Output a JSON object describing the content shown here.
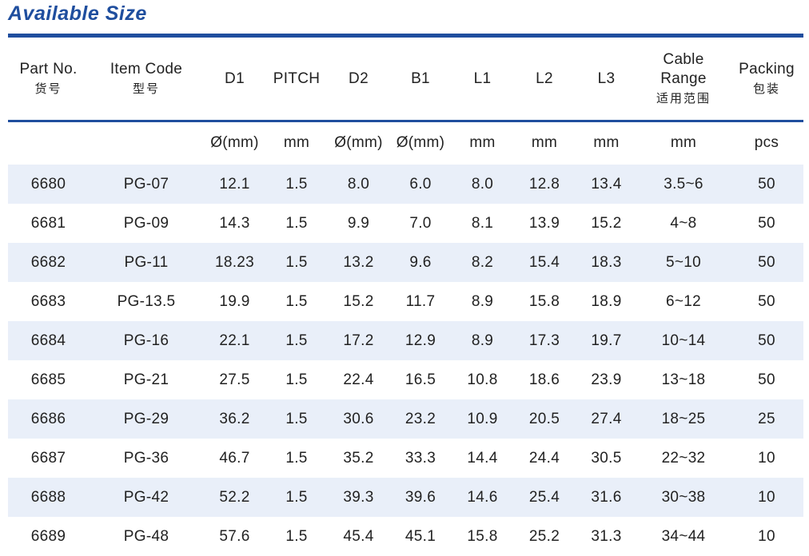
{
  "title": "Available Size",
  "headers": [
    {
      "en": "Part No.",
      "zh": "货号"
    },
    {
      "en": "Item Code",
      "zh": "型号"
    },
    {
      "en": "D1",
      "zh": ""
    },
    {
      "en": "PITCH",
      "zh": ""
    },
    {
      "en": "D2",
      "zh": ""
    },
    {
      "en": "B1",
      "zh": ""
    },
    {
      "en": "L1",
      "zh": ""
    },
    {
      "en": "L2",
      "zh": ""
    },
    {
      "en": "L3",
      "zh": ""
    },
    {
      "en": "Cable Range",
      "zh": "适用范围"
    },
    {
      "en": "Packing",
      "zh": "包装"
    }
  ],
  "units": [
    "",
    "",
    "Ø(mm)",
    "mm",
    "Ø(mm)",
    "Ø(mm)",
    "mm",
    "mm",
    "mm",
    "mm",
    "pcs"
  ],
  "rows": [
    [
      "6680",
      "PG-07",
      "12.1",
      "1.5",
      "8.0",
      "6.0",
      "8.0",
      "12.8",
      "13.4",
      "3.5~6",
      "50"
    ],
    [
      "6681",
      "PG-09",
      "14.3",
      "1.5",
      "9.9",
      "7.0",
      "8.1",
      "13.9",
      "15.2",
      "4~8",
      "50"
    ],
    [
      "6682",
      "PG-11",
      "18.23",
      "1.5",
      "13.2",
      "9.6",
      "8.2",
      "15.4",
      "18.3",
      "5~10",
      "50"
    ],
    [
      "6683",
      "PG-13.5",
      "19.9",
      "1.5",
      "15.2",
      "11.7",
      "8.9",
      "15.8",
      "18.9",
      "6~12",
      "50"
    ],
    [
      "6684",
      "PG-16",
      "22.1",
      "1.5",
      "17.2",
      "12.9",
      "8.9",
      "17.3",
      "19.7",
      "10~14",
      "50"
    ],
    [
      "6685",
      "PG-21",
      "27.5",
      "1.5",
      "22.4",
      "16.5",
      "10.8",
      "18.6",
      "23.9",
      "13~18",
      "50"
    ],
    [
      "6686",
      "PG-29",
      "36.2",
      "1.5",
      "30.6",
      "23.2",
      "10.9",
      "20.5",
      "27.4",
      "18~25",
      "25"
    ],
    [
      "6687",
      "PG-36",
      "46.7",
      "1.5",
      "35.2",
      "33.3",
      "14.4",
      "24.4",
      "30.5",
      "22~32",
      "10"
    ],
    [
      "6688",
      "PG-42",
      "52.2",
      "1.5",
      "39.3",
      "39.6",
      "14.6",
      "25.4",
      "31.6",
      "30~38",
      "10"
    ],
    [
      "6689",
      "PG-48",
      "57.6",
      "1.5",
      "45.4",
      "45.1",
      "15.8",
      "25.2",
      "31.3",
      "34~44",
      "10"
    ]
  ],
  "colors": {
    "accent": "#1f4e9e",
    "row_shade": "#e9eff9",
    "text": "#222222"
  }
}
